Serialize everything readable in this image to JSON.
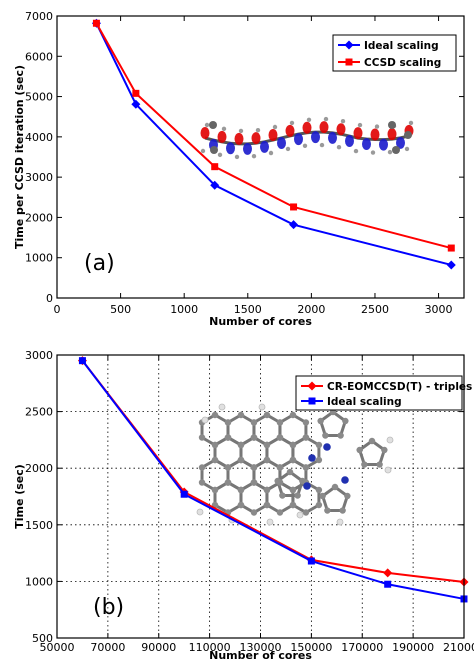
{
  "chart_data": [
    {
      "type": "line",
      "panel_label": "(a)",
      "xlabel": "Number of cores",
      "ylabel": "Time per CCSD iteration (sec)",
      "xlim": [
        0,
        3200
      ],
      "ylim": [
        0,
        7000
      ],
      "xticks": [
        0,
        500,
        1000,
        1500,
        2000,
        2500,
        3000
      ],
      "yticks": [
        0,
        1000,
        2000,
        3000,
        4000,
        5000,
        6000,
        7000
      ],
      "grid": false,
      "legend_position": "top-right",
      "series": [
        {
          "name": "Ideal scaling",
          "color": "#0000ff",
          "marker": "diamond",
          "x": [
            310,
            620,
            1240,
            1860,
            3100
          ],
          "y": [
            6820,
            4810,
            2800,
            1820,
            820
          ]
        },
        {
          "name": "CCSD scaling",
          "color": "#ff0000",
          "marker": "square",
          "x": [
            310,
            620,
            1240,
            1860,
            3100
          ],
          "y": [
            6820,
            5080,
            3260,
            2260,
            1240
          ]
        }
      ],
      "inset_image": "molecular-orbital-chain-illustration"
    },
    {
      "type": "line",
      "panel_label": "(b)",
      "xlabel": "Number of cores",
      "ylabel": "Time (sec)",
      "xlim": [
        50000,
        210000
      ],
      "ylim": [
        500,
        3000
      ],
      "xticks": [
        50000,
        70000,
        90000,
        110000,
        130000,
        150000,
        170000,
        190000,
        210000
      ],
      "yticks": [
        500,
        1000,
        1500,
        2000,
        2500,
        3000
      ],
      "grid": true,
      "legend_position": "top-right",
      "series": [
        {
          "name": "CR-EOMCCSD(T) - triples part",
          "color": "#ff0000",
          "marker": "diamond",
          "x": [
            60000,
            100000,
            150000,
            180000,
            210000
          ],
          "y": [
            2950,
            1790,
            1190,
            1075,
            995
          ]
        },
        {
          "name": "Ideal scaling",
          "color": "#0000ff",
          "marker": "square",
          "x": [
            60000,
            100000,
            150000,
            180000,
            210000
          ],
          "y": [
            2950,
            1770,
            1180,
            975,
            845
          ]
        }
      ],
      "inset_image": "porphyrin-molecule-illustration"
    }
  ]
}
